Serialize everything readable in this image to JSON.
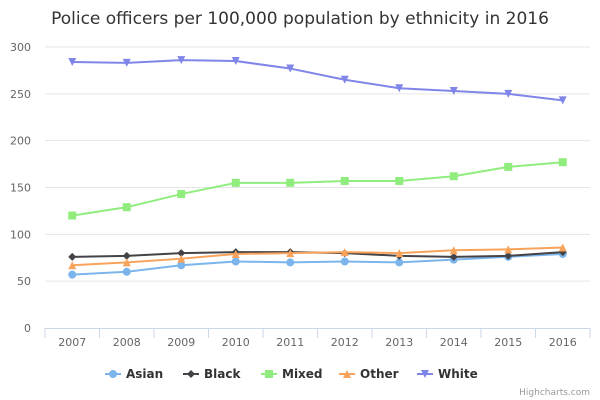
{
  "chart_data": {
    "type": "line",
    "title": "Police officers per 100,000 population by ethnicity in 2016",
    "xlabel": "",
    "ylabel": "",
    "x": [
      "2007",
      "2008",
      "2009",
      "2010",
      "2011",
      "2012",
      "2013",
      "2014",
      "2015",
      "2016"
    ],
    "ylim": [
      0,
      300
    ],
    "yticks": [
      "0",
      "50",
      "100",
      "150",
      "200",
      "250",
      "300"
    ],
    "grid": true,
    "legend_position": "bottom",
    "credits": "Highcharts.com",
    "series": [
      {
        "name": "Asian",
        "color": "#7cb5ec",
        "marker": "circle",
        "values": [
          57,
          60,
          67,
          71,
          70,
          71,
          70,
          73,
          76,
          79
        ]
      },
      {
        "name": "Black",
        "color": "#434348",
        "marker": "diamond",
        "values": [
          76,
          77,
          80,
          81,
          81,
          80,
          77,
          76,
          77,
          81
        ]
      },
      {
        "name": "Mixed",
        "color": "#90ed7d",
        "marker": "square",
        "values": [
          120,
          129,
          143,
          155,
          155,
          157,
          157,
          162,
          172,
          177
        ]
      },
      {
        "name": "Other",
        "color": "#f7a35c",
        "marker": "triangle",
        "values": [
          67,
          70,
          74,
          79,
          80,
          81,
          80,
          83,
          84,
          86
        ]
      },
      {
        "name": "White",
        "color": "#8085e9",
        "marker": "triangle-down",
        "values": [
          284,
          283,
          286,
          285,
          277,
          265,
          256,
          253,
          250,
          243
        ]
      }
    ]
  }
}
